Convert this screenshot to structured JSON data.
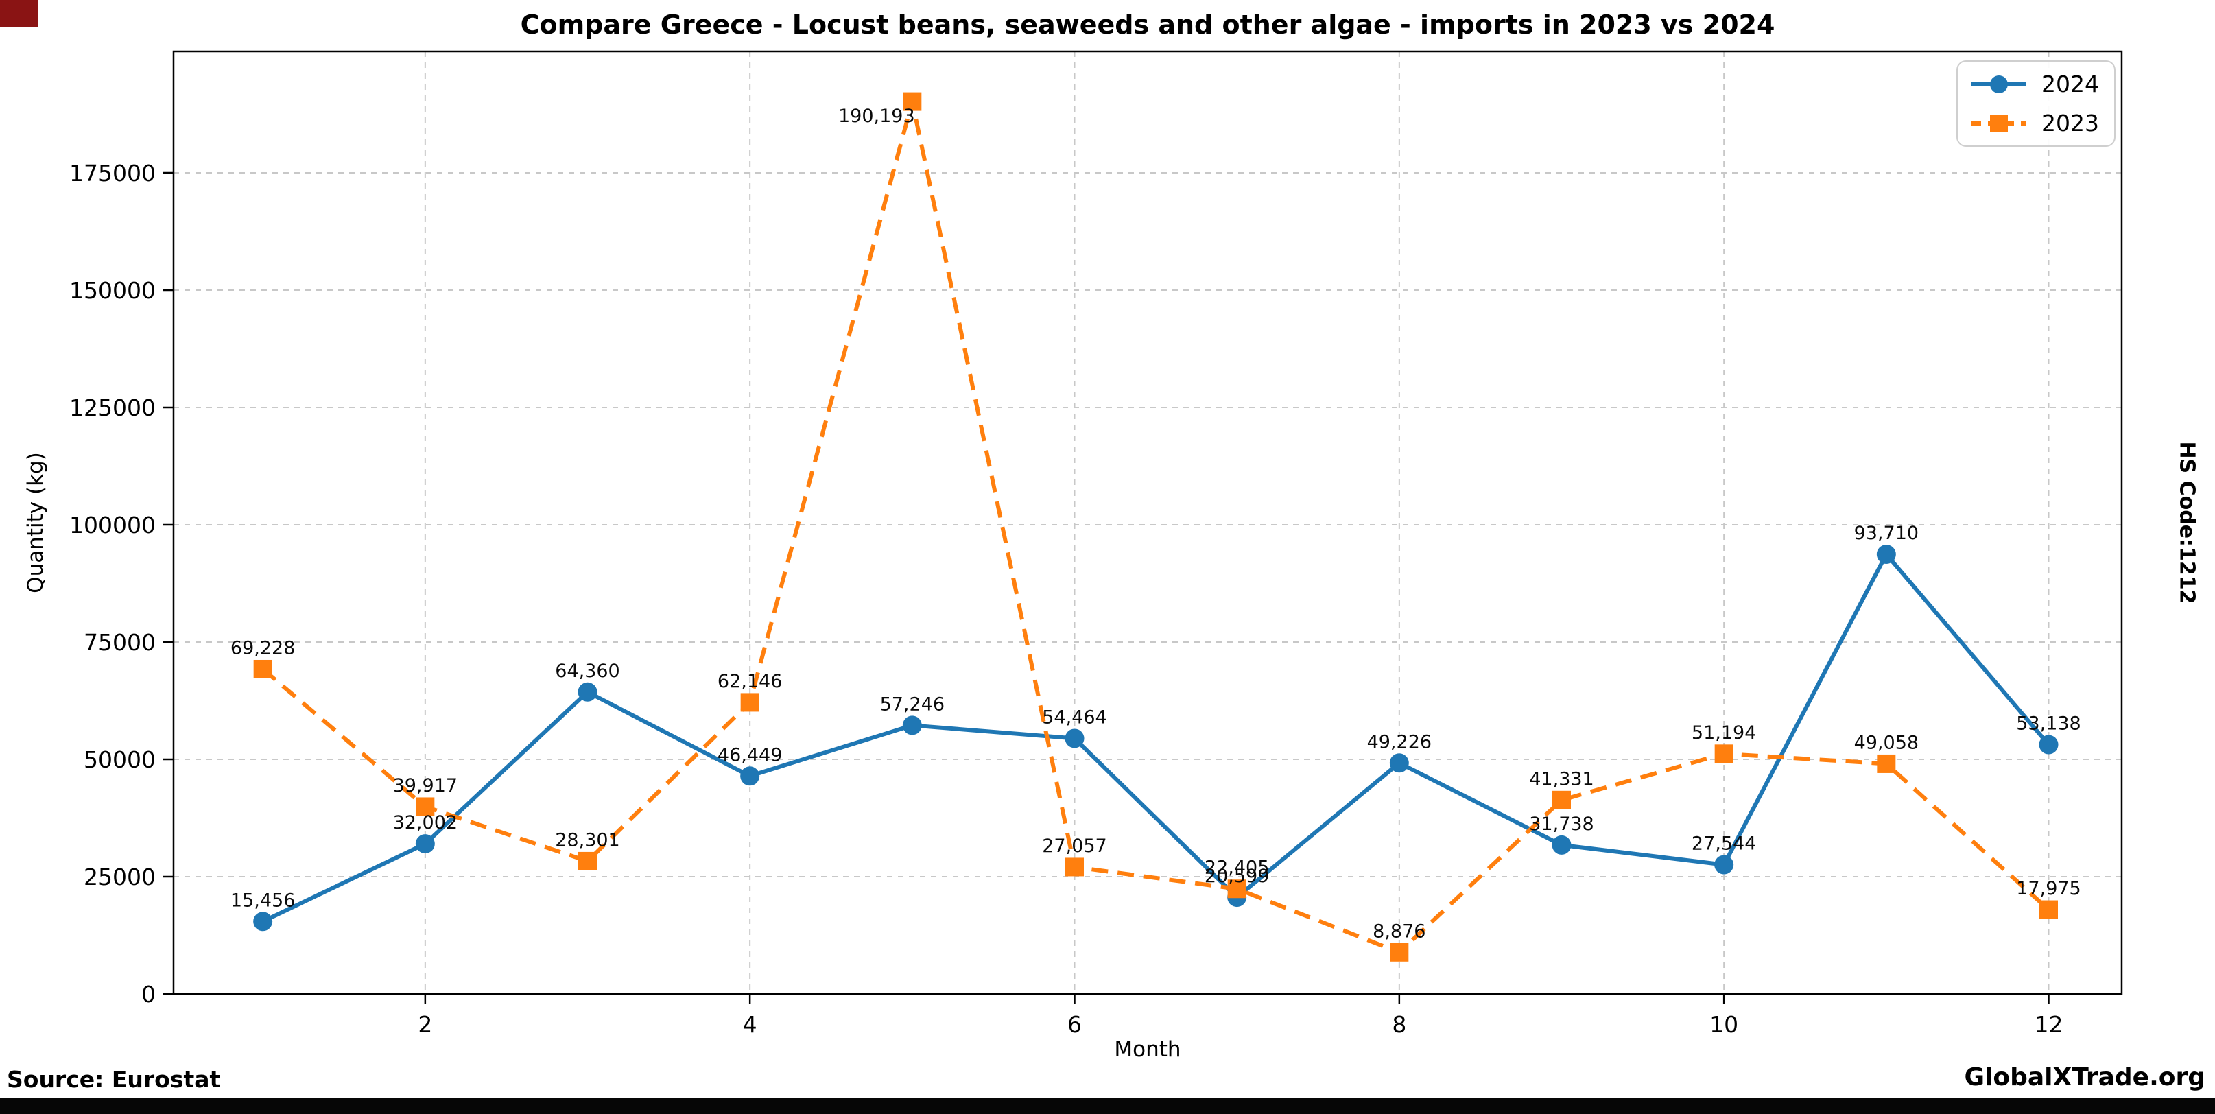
{
  "footer": {
    "source": "Source: Eurostat",
    "brand": "GlobalXTrade.org"
  },
  "side_note": "HS Code:1212",
  "colors": {
    "grid": "#c8c8c8",
    "corner_accent": "#8a1414",
    "bottom_bar": "#060606"
  },
  "chart_data": {
    "type": "line",
    "title": "Compare Greece - Locust beans, seaweeds and other algae - imports in 2023 vs 2024",
    "xlabel": "Month",
    "ylabel": "Quantity (kg)",
    "x": [
      1,
      2,
      3,
      4,
      5,
      6,
      7,
      8,
      9,
      10,
      11,
      12
    ],
    "xticks": [
      2,
      4,
      6,
      8,
      10,
      12
    ],
    "yticks": [
      0,
      25000,
      50000,
      75000,
      100000,
      125000,
      150000,
      175000
    ],
    "xlim": [
      0.45,
      12.45
    ],
    "ylim": [
      0,
      200900
    ],
    "grid": true,
    "legend_position": "upper right",
    "series": [
      {
        "name": "2024",
        "color": "#1f77b4",
        "line_style": "solid",
        "marker": "circle",
        "values": [
          15456,
          32002,
          64360,
          46449,
          57246,
          54464,
          20599,
          49226,
          31738,
          27544,
          93710,
          53138
        ],
        "labels": [
          "15,456",
          "32,002",
          "64,360",
          "46,449",
          "57,246",
          "54,464",
          "20,599",
          "49,226",
          "31,738",
          "27,544",
          "93,710",
          "53,138"
        ]
      },
      {
        "name": "2023",
        "color": "#ff7f0e",
        "line_style": "dashed",
        "marker": "square",
        "values": [
          69228,
          39917,
          28301,
          62146,
          190193,
          27057,
          22405,
          8876,
          41331,
          51194,
          49058,
          17975
        ],
        "labels": [
          "69,228",
          "39,917",
          "28,301",
          "62,146",
          "190,193",
          "27,057",
          "22,405",
          "8,876",
          "41,331",
          "51,194",
          "49,058",
          "17,975"
        ]
      }
    ]
  }
}
